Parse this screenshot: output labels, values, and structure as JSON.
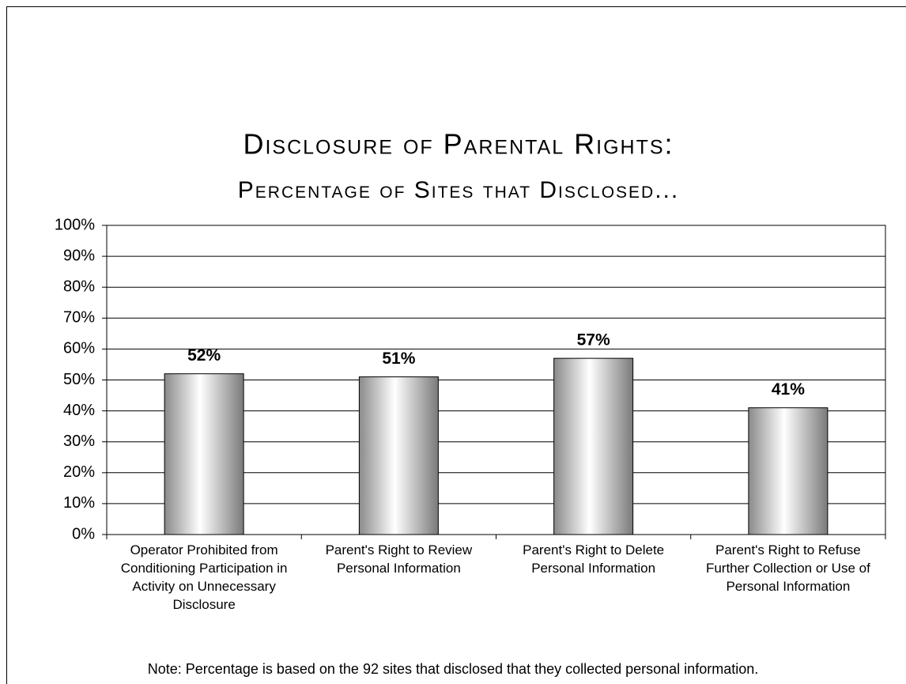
{
  "chart_data": {
    "type": "bar",
    "title": "Disclosure of Parental Rights:",
    "subtitle": "Percentage of Sites that Disclosed...",
    "categories": [
      "Operator Prohibited from Conditioning Participation in Activity on Unnecessary Disclosure",
      "Parent's Right to Review Personal Information",
      "Parent's Right to Delete Personal Information",
      "Parent's Right to Refuse Further Collection or Use of Personal Information"
    ],
    "values": [
      52,
      51,
      57,
      41
    ],
    "value_labels": [
      "52%",
      "51%",
      "57%",
      "41%"
    ],
    "ylim": [
      0,
      100
    ],
    "yticks": [
      {
        "value": 0,
        "label": "0%"
      },
      {
        "value": 10,
        "label": "10%"
      },
      {
        "value": 20,
        "label": "20%"
      },
      {
        "value": 30,
        "label": "30%"
      },
      {
        "value": 40,
        "label": "40%"
      },
      {
        "value": 50,
        "label": "50%"
      },
      {
        "value": 60,
        "label": "60%"
      },
      {
        "value": 70,
        "label": "70%"
      },
      {
        "value": 80,
        "label": "80%"
      },
      {
        "value": 90,
        "label": "90%"
      },
      {
        "value": 100,
        "label": "100%"
      }
    ],
    "grid": true,
    "note": "Note: Percentage is based on the 92 sites that disclosed that they collected personal information."
  }
}
